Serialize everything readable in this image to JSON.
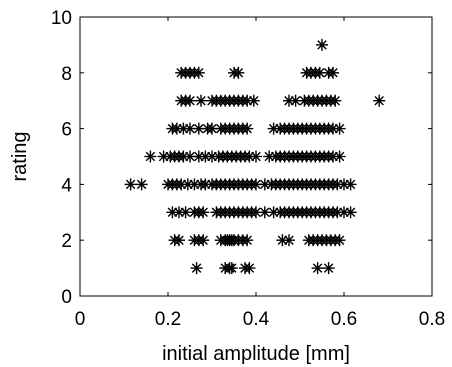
{
  "chart_data": {
    "type": "scatter",
    "title": "",
    "xlabel": "initial amplitude [mm]",
    "ylabel": "rating",
    "xlim": [
      0,
      0.8
    ],
    "ylim": [
      0,
      10
    ],
    "xticks": [
      0,
      0.2,
      0.4,
      0.6,
      0.8
    ],
    "xtick_labels": [
      "0",
      "0.2",
      "0.4",
      "0.6",
      "0.8"
    ],
    "yticks": [
      0,
      2,
      4,
      6,
      8,
      10
    ],
    "ytick_labels": [
      "0",
      "2",
      "4",
      "6",
      "8",
      "10"
    ],
    "grid": false,
    "marker": "asterisk",
    "marker_color": "#000000",
    "points": [
      {
        "x": 0.265,
        "y": 1
      },
      {
        "x": 0.33,
        "y": 1
      },
      {
        "x": 0.34,
        "y": 1
      },
      {
        "x": 0.345,
        "y": 1
      },
      {
        "x": 0.375,
        "y": 1
      },
      {
        "x": 0.385,
        "y": 1
      },
      {
        "x": 0.54,
        "y": 1
      },
      {
        "x": 0.565,
        "y": 1
      },
      {
        "x": 0.215,
        "y": 2
      },
      {
        "x": 0.225,
        "y": 2
      },
      {
        "x": 0.26,
        "y": 2
      },
      {
        "x": 0.27,
        "y": 2
      },
      {
        "x": 0.28,
        "y": 2
      },
      {
        "x": 0.32,
        "y": 2
      },
      {
        "x": 0.33,
        "y": 2
      },
      {
        "x": 0.335,
        "y": 2
      },
      {
        "x": 0.34,
        "y": 2
      },
      {
        "x": 0.345,
        "y": 2
      },
      {
        "x": 0.35,
        "y": 2
      },
      {
        "x": 0.36,
        "y": 2
      },
      {
        "x": 0.37,
        "y": 2
      },
      {
        "x": 0.38,
        "y": 2
      },
      {
        "x": 0.46,
        "y": 2
      },
      {
        "x": 0.475,
        "y": 2
      },
      {
        "x": 0.52,
        "y": 2
      },
      {
        "x": 0.53,
        "y": 2
      },
      {
        "x": 0.54,
        "y": 2
      },
      {
        "x": 0.55,
        "y": 2
      },
      {
        "x": 0.56,
        "y": 2
      },
      {
        "x": 0.57,
        "y": 2
      },
      {
        "x": 0.58,
        "y": 2
      },
      {
        "x": 0.59,
        "y": 2
      },
      {
        "x": 0.21,
        "y": 3
      },
      {
        "x": 0.225,
        "y": 3
      },
      {
        "x": 0.24,
        "y": 3
      },
      {
        "x": 0.26,
        "y": 3
      },
      {
        "x": 0.27,
        "y": 3
      },
      {
        "x": 0.28,
        "y": 3
      },
      {
        "x": 0.31,
        "y": 3
      },
      {
        "x": 0.32,
        "y": 3
      },
      {
        "x": 0.33,
        "y": 3
      },
      {
        "x": 0.34,
        "y": 3
      },
      {
        "x": 0.35,
        "y": 3
      },
      {
        "x": 0.36,
        "y": 3
      },
      {
        "x": 0.37,
        "y": 3
      },
      {
        "x": 0.38,
        "y": 3
      },
      {
        "x": 0.39,
        "y": 3
      },
      {
        "x": 0.4,
        "y": 3
      },
      {
        "x": 0.42,
        "y": 3
      },
      {
        "x": 0.44,
        "y": 3
      },
      {
        "x": 0.455,
        "y": 3
      },
      {
        "x": 0.465,
        "y": 3
      },
      {
        "x": 0.475,
        "y": 3
      },
      {
        "x": 0.485,
        "y": 3
      },
      {
        "x": 0.495,
        "y": 3
      },
      {
        "x": 0.505,
        "y": 3
      },
      {
        "x": 0.515,
        "y": 3
      },
      {
        "x": 0.525,
        "y": 3
      },
      {
        "x": 0.535,
        "y": 3
      },
      {
        "x": 0.545,
        "y": 3
      },
      {
        "x": 0.555,
        "y": 3
      },
      {
        "x": 0.565,
        "y": 3
      },
      {
        "x": 0.575,
        "y": 3
      },
      {
        "x": 0.585,
        "y": 3
      },
      {
        "x": 0.6,
        "y": 3
      },
      {
        "x": 0.615,
        "y": 3
      },
      {
        "x": 0.115,
        "y": 4
      },
      {
        "x": 0.14,
        "y": 4
      },
      {
        "x": 0.2,
        "y": 4
      },
      {
        "x": 0.21,
        "y": 4
      },
      {
        "x": 0.22,
        "y": 4
      },
      {
        "x": 0.23,
        "y": 4
      },
      {
        "x": 0.245,
        "y": 4
      },
      {
        "x": 0.26,
        "y": 4
      },
      {
        "x": 0.275,
        "y": 4
      },
      {
        "x": 0.285,
        "y": 4
      },
      {
        "x": 0.3,
        "y": 4
      },
      {
        "x": 0.31,
        "y": 4
      },
      {
        "x": 0.32,
        "y": 4
      },
      {
        "x": 0.33,
        "y": 4
      },
      {
        "x": 0.34,
        "y": 4
      },
      {
        "x": 0.35,
        "y": 4
      },
      {
        "x": 0.36,
        "y": 4
      },
      {
        "x": 0.37,
        "y": 4
      },
      {
        "x": 0.38,
        "y": 4
      },
      {
        "x": 0.39,
        "y": 4
      },
      {
        "x": 0.4,
        "y": 4
      },
      {
        "x": 0.42,
        "y": 4
      },
      {
        "x": 0.435,
        "y": 4
      },
      {
        "x": 0.445,
        "y": 4
      },
      {
        "x": 0.455,
        "y": 4
      },
      {
        "x": 0.465,
        "y": 4
      },
      {
        "x": 0.475,
        "y": 4
      },
      {
        "x": 0.485,
        "y": 4
      },
      {
        "x": 0.495,
        "y": 4
      },
      {
        "x": 0.505,
        "y": 4
      },
      {
        "x": 0.515,
        "y": 4
      },
      {
        "x": 0.525,
        "y": 4
      },
      {
        "x": 0.535,
        "y": 4
      },
      {
        "x": 0.545,
        "y": 4
      },
      {
        "x": 0.555,
        "y": 4
      },
      {
        "x": 0.565,
        "y": 4
      },
      {
        "x": 0.575,
        "y": 4
      },
      {
        "x": 0.585,
        "y": 4
      },
      {
        "x": 0.6,
        "y": 4
      },
      {
        "x": 0.615,
        "y": 4
      },
      {
        "x": 0.16,
        "y": 5
      },
      {
        "x": 0.19,
        "y": 5
      },
      {
        "x": 0.205,
        "y": 5
      },
      {
        "x": 0.215,
        "y": 5
      },
      {
        "x": 0.225,
        "y": 5
      },
      {
        "x": 0.235,
        "y": 5
      },
      {
        "x": 0.25,
        "y": 5
      },
      {
        "x": 0.27,
        "y": 5
      },
      {
        "x": 0.285,
        "y": 5
      },
      {
        "x": 0.3,
        "y": 5
      },
      {
        "x": 0.315,
        "y": 5
      },
      {
        "x": 0.325,
        "y": 5
      },
      {
        "x": 0.335,
        "y": 5
      },
      {
        "x": 0.345,
        "y": 5
      },
      {
        "x": 0.355,
        "y": 5
      },
      {
        "x": 0.365,
        "y": 5
      },
      {
        "x": 0.375,
        "y": 5
      },
      {
        "x": 0.385,
        "y": 5
      },
      {
        "x": 0.4,
        "y": 5
      },
      {
        "x": 0.43,
        "y": 5
      },
      {
        "x": 0.445,
        "y": 5
      },
      {
        "x": 0.455,
        "y": 5
      },
      {
        "x": 0.465,
        "y": 5
      },
      {
        "x": 0.475,
        "y": 5
      },
      {
        "x": 0.485,
        "y": 5
      },
      {
        "x": 0.495,
        "y": 5
      },
      {
        "x": 0.505,
        "y": 5
      },
      {
        "x": 0.515,
        "y": 5
      },
      {
        "x": 0.525,
        "y": 5
      },
      {
        "x": 0.535,
        "y": 5
      },
      {
        "x": 0.545,
        "y": 5
      },
      {
        "x": 0.555,
        "y": 5
      },
      {
        "x": 0.565,
        "y": 5
      },
      {
        "x": 0.575,
        "y": 5
      },
      {
        "x": 0.59,
        "y": 5
      },
      {
        "x": 0.21,
        "y": 6
      },
      {
        "x": 0.22,
        "y": 6
      },
      {
        "x": 0.235,
        "y": 6
      },
      {
        "x": 0.25,
        "y": 6
      },
      {
        "x": 0.27,
        "y": 6
      },
      {
        "x": 0.29,
        "y": 6
      },
      {
        "x": 0.3,
        "y": 6
      },
      {
        "x": 0.32,
        "y": 6
      },
      {
        "x": 0.33,
        "y": 6
      },
      {
        "x": 0.34,
        "y": 6
      },
      {
        "x": 0.35,
        "y": 6
      },
      {
        "x": 0.36,
        "y": 6
      },
      {
        "x": 0.37,
        "y": 6
      },
      {
        "x": 0.38,
        "y": 6
      },
      {
        "x": 0.44,
        "y": 6
      },
      {
        "x": 0.455,
        "y": 6
      },
      {
        "x": 0.465,
        "y": 6
      },
      {
        "x": 0.475,
        "y": 6
      },
      {
        "x": 0.485,
        "y": 6
      },
      {
        "x": 0.495,
        "y": 6
      },
      {
        "x": 0.505,
        "y": 6
      },
      {
        "x": 0.515,
        "y": 6
      },
      {
        "x": 0.525,
        "y": 6
      },
      {
        "x": 0.535,
        "y": 6
      },
      {
        "x": 0.545,
        "y": 6
      },
      {
        "x": 0.555,
        "y": 6
      },
      {
        "x": 0.565,
        "y": 6
      },
      {
        "x": 0.575,
        "y": 6
      },
      {
        "x": 0.59,
        "y": 6
      },
      {
        "x": 0.23,
        "y": 7
      },
      {
        "x": 0.24,
        "y": 7
      },
      {
        "x": 0.25,
        "y": 7
      },
      {
        "x": 0.275,
        "y": 7
      },
      {
        "x": 0.3,
        "y": 7
      },
      {
        "x": 0.31,
        "y": 7
      },
      {
        "x": 0.32,
        "y": 7
      },
      {
        "x": 0.33,
        "y": 7
      },
      {
        "x": 0.34,
        "y": 7
      },
      {
        "x": 0.35,
        "y": 7
      },
      {
        "x": 0.36,
        "y": 7
      },
      {
        "x": 0.37,
        "y": 7
      },
      {
        "x": 0.38,
        "y": 7
      },
      {
        "x": 0.395,
        "y": 7
      },
      {
        "x": 0.475,
        "y": 7
      },
      {
        "x": 0.49,
        "y": 7
      },
      {
        "x": 0.51,
        "y": 7
      },
      {
        "x": 0.52,
        "y": 7
      },
      {
        "x": 0.53,
        "y": 7
      },
      {
        "x": 0.54,
        "y": 7
      },
      {
        "x": 0.55,
        "y": 7
      },
      {
        "x": 0.56,
        "y": 7
      },
      {
        "x": 0.57,
        "y": 7
      },
      {
        "x": 0.58,
        "y": 7
      },
      {
        "x": 0.68,
        "y": 7
      },
      {
        "x": 0.23,
        "y": 8
      },
      {
        "x": 0.24,
        "y": 8
      },
      {
        "x": 0.25,
        "y": 8
      },
      {
        "x": 0.26,
        "y": 8
      },
      {
        "x": 0.27,
        "y": 8
      },
      {
        "x": 0.35,
        "y": 8
      },
      {
        "x": 0.36,
        "y": 8
      },
      {
        "x": 0.515,
        "y": 8
      },
      {
        "x": 0.525,
        "y": 8
      },
      {
        "x": 0.535,
        "y": 8
      },
      {
        "x": 0.545,
        "y": 8
      },
      {
        "x": 0.565,
        "y": 8
      },
      {
        "x": 0.575,
        "y": 8
      },
      {
        "x": 0.55,
        "y": 9
      }
    ]
  }
}
